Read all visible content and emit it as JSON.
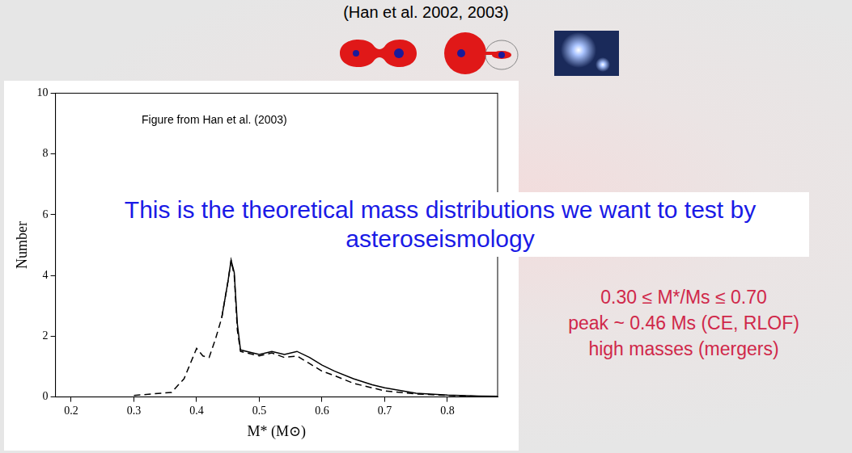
{
  "title": "(Han et al. 2002, 2003)",
  "figure_credit": "Figure from Han et al. (2003)",
  "overlay_text": "This is the theoretical mass distributions we want to test by asteroseismology",
  "side_notes": [
    "0.30 ≤ M*/Ms ≤ 0.70",
    "peak ~ 0.46 Ms (CE, RLOF)",
    "high masses (mergers)"
  ],
  "chart_data": {
    "type": "line",
    "x_label": "M* (M⊙)",
    "y_label": "Number",
    "x": [
      0.3,
      0.33,
      0.36,
      0.38,
      0.4,
      0.41,
      0.42,
      0.43,
      0.44,
      0.45,
      0.455,
      0.46,
      0.465,
      0.47,
      0.48,
      0.5,
      0.52,
      0.54,
      0.56,
      0.58,
      0.6,
      0.62,
      0.65,
      0.68,
      0.7,
      0.75,
      0.8,
      0.85,
      0.88
    ],
    "series": [
      {
        "color": "#000000",
        "line_style": "solid",
        "values": [
          null,
          null,
          null,
          null,
          null,
          null,
          null,
          null,
          2.6,
          3.8,
          4.5,
          4.1,
          2.4,
          1.55,
          1.5,
          1.4,
          1.5,
          1.4,
          1.5,
          1.3,
          1.05,
          0.85,
          0.6,
          0.4,
          0.3,
          0.12,
          0.06,
          0.03,
          0.02
        ]
      },
      {
        "color": "#000000",
        "line_style": "dashed",
        "values": [
          0.05,
          0.1,
          0.15,
          0.6,
          1.6,
          1.35,
          1.3,
          1.9,
          2.6,
          3.8,
          4.5,
          4.0,
          2.2,
          1.5,
          1.45,
          1.35,
          1.45,
          1.3,
          1.35,
          1.1,
          0.85,
          0.7,
          0.45,
          0.3,
          0.2,
          0.1,
          0.05,
          0.02,
          0.01
        ]
      }
    ],
    "xlim": [
      0.175,
      0.88
    ],
    "ylim": [
      0,
      10
    ],
    "xticks": [
      0.2,
      0.3,
      0.4,
      0.5,
      0.6,
      0.7,
      0.8
    ],
    "yticks": [
      0,
      2,
      4,
      6,
      8,
      10
    ],
    "grid": false
  }
}
